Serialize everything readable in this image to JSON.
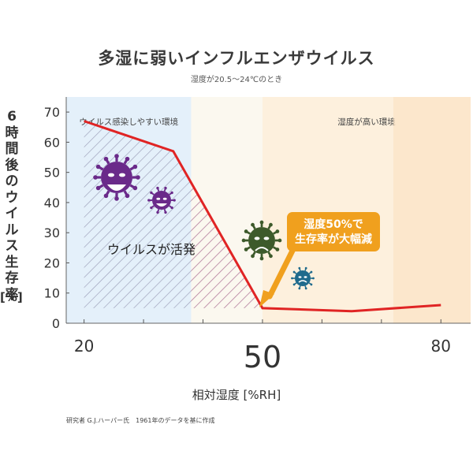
{
  "chart_data": {
    "type": "line",
    "title": "多湿に弱いインフルエンザウイルス",
    "subtitle": "湿度が20.5〜24℃のとき",
    "ylabel": "6時間後のウイルス生存率",
    "ylabel_unit": "[%]",
    "xlabel": "相対湿度 [%RH]",
    "x_ticks": [
      20,
      50,
      80
    ],
    "y_ticks": [
      0,
      10,
      20,
      30,
      40,
      50,
      60,
      70
    ],
    "xlim": [
      17,
      85
    ],
    "ylim": [
      0,
      75
    ],
    "grid": false,
    "series": [
      {
        "x": [
          20,
          35,
          50,
          65,
          80
        ],
        "y": [
          67,
          57,
          5,
          4,
          6
        ]
      }
    ],
    "regions": [
      {
        "label": "ウイルス感染しやすい環境",
        "x_range": [
          17,
          38
        ],
        "color": "#e4f0fa"
      },
      {
        "label": "湿度が高い環境",
        "x_range": [
          50,
          85
        ],
        "color": "#fdf0dd"
      }
    ],
    "annotations": {
      "active_label": "ウイルスが活発",
      "callout_lines": [
        "湿度50%で",
        "生存率が大幅減"
      ]
    },
    "colors": {
      "line": "#e02424",
      "callout": "#f0a01e",
      "virus_purple": "#6a2a8a",
      "virus_green": "#3d5a2b",
      "virus_blue": "#1f6a8c"
    },
    "footnote": "研究者 G.J.ハーパー氏　1961年のデータを基に作成"
  }
}
